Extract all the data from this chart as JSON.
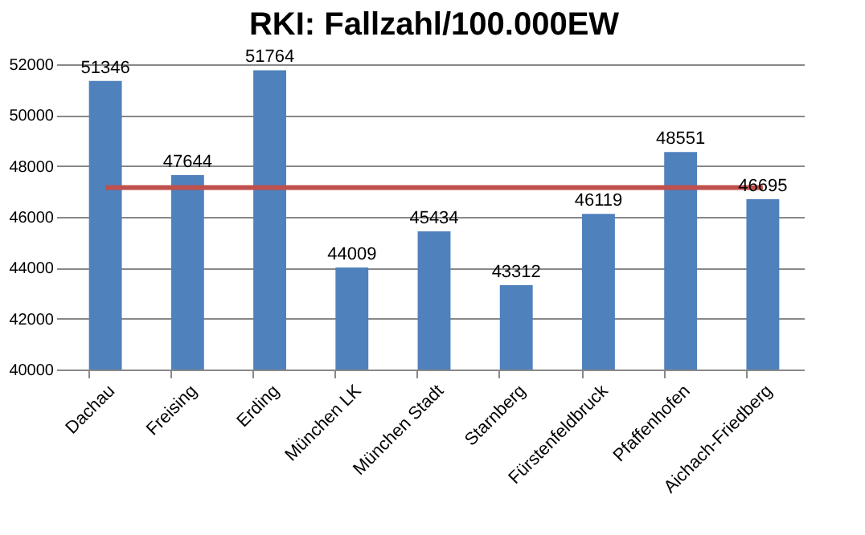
{
  "chart_data": {
    "type": "bar",
    "title": "RKI: Fallzahl/100.000EW",
    "categories": [
      "Dachau",
      "Freising",
      "Erding",
      "München LK",
      "München Stadt",
      "Starnberg",
      "Fürstenfeldbruck",
      "Pfaffenhofen",
      "Aichach-Friedberg"
    ],
    "values": [
      51346,
      47644,
      51764,
      44009,
      45434,
      43312,
      46119,
      48551,
      46695
    ],
    "color": "#4f81bd",
    "ylim": [
      40000,
      52000
    ],
    "yticks": [
      40000,
      42000,
      44000,
      46000,
      48000,
      50000,
      52000
    ],
    "grid": "y",
    "data_labels": true,
    "legend": false,
    "ref_lines": [
      {
        "axis": "y",
        "value": 47150,
        "color": "#c0504d"
      }
    ]
  }
}
